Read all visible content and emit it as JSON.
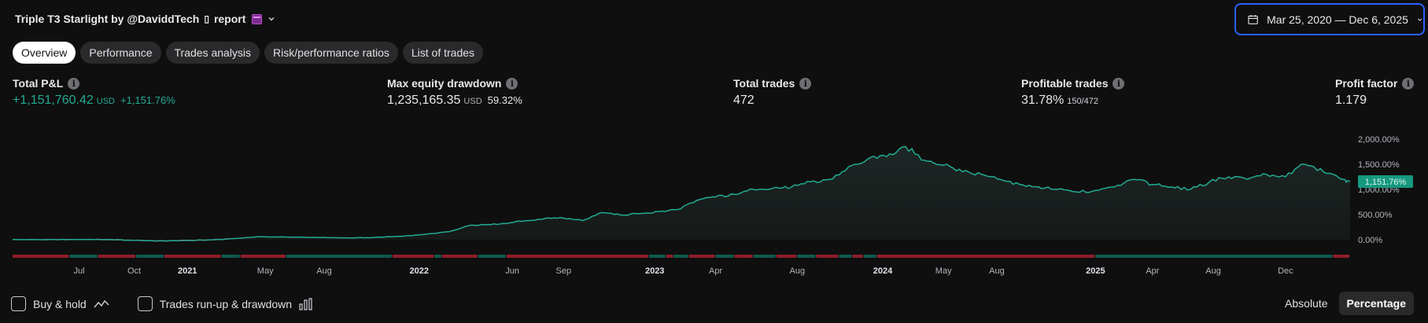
{
  "header": {
    "title": "Triple T3 Starlight by @DaviddTech",
    "glyph": "▯",
    "report_label": "report",
    "date_range": "Mar 25, 2020 — Dec 6, 2025"
  },
  "tabs": [
    {
      "label": "Overview",
      "active": true
    },
    {
      "label": "Performance",
      "active": false
    },
    {
      "label": "Trades analysis",
      "active": false
    },
    {
      "label": "Risk/performance ratios",
      "active": false
    },
    {
      "label": "List of trades",
      "active": false
    }
  ],
  "metrics": {
    "total_pnl": {
      "label": "Total P&L",
      "value": "+1,151,760.42",
      "unit": "USD",
      "pct": "+1,151.76%"
    },
    "max_dd": {
      "label": "Max equity drawdown",
      "value": "1,235,165.35",
      "unit": "USD",
      "pct": "59.32%"
    },
    "total_trades": {
      "label": "Total trades",
      "value": "472"
    },
    "profitable": {
      "label": "Profitable trades",
      "value": "31.78%",
      "ratio": "150/472"
    },
    "profit_factor": {
      "label": "Profit factor",
      "value": "1.179"
    }
  },
  "chart_data": {
    "type": "area",
    "y_ticks": [
      "2,000.00%",
      "1,500.00%",
      "1,000.00%",
      "500.00%",
      "0.00%"
    ],
    "ylim": [
      0,
      2000
    ],
    "last_value_label": "1,151.76%",
    "x_ticks": [
      {
        "label": "Jul",
        "year": false
      },
      {
        "label": "Oct",
        "year": false
      },
      {
        "label": "2021",
        "year": true
      },
      {
        "label": "May",
        "year": false
      },
      {
        "label": "Aug",
        "year": false
      },
      {
        "label": "2022",
        "year": true
      },
      {
        "label": "Jun",
        "year": false
      },
      {
        "label": "Sep",
        "year": false
      },
      {
        "label": "2023",
        "year": true
      },
      {
        "label": "Apr",
        "year": false
      },
      {
        "label": "Aug",
        "year": false
      },
      {
        "label": "2024",
        "year": true
      },
      {
        "label": "May",
        "year": false
      },
      {
        "label": "Aug",
        "year": false
      },
      {
        "label": "2025",
        "year": true
      },
      {
        "label": "Apr",
        "year": false
      },
      {
        "label": "Aug",
        "year": false
      },
      {
        "label": "Dec",
        "year": false
      }
    ],
    "x_months": [
      3.5,
      6.4,
      9.2,
      13.3,
      16.4,
      21.4,
      26.3,
      29.0,
      33.8,
      37.0,
      41.3,
      45.8,
      49.0,
      51.8,
      57.0,
      60.0,
      63.2,
      67.0
    ],
    "equity_t_months": [
      0,
      2,
      3,
      4,
      5,
      5.5,
      6,
      7,
      8,
      9,
      10,
      11,
      12,
      13,
      14,
      15,
      16,
      17,
      18,
      19,
      20,
      21,
      22,
      23,
      24,
      25,
      26,
      27,
      28,
      29,
      30,
      31,
      32,
      33,
      34,
      35,
      36,
      37,
      38,
      39,
      40,
      41,
      42,
      43,
      44,
      45,
      46,
      47,
      48,
      49,
      50,
      51,
      52,
      53,
      54,
      55,
      56,
      57,
      58,
      59,
      60,
      61,
      62,
      63,
      64,
      65,
      66,
      67,
      68,
      69,
      70,
      70.4
    ],
    "equity_values": [
      5,
      4,
      3,
      6,
      2,
      0,
      -10,
      -18,
      -25,
      -15,
      -8,
      5,
      30,
      60,
      55,
      50,
      45,
      40,
      35,
      45,
      60,
      80,
      120,
      160,
      280,
      300,
      320,
      380,
      420,
      430,
      380,
      540,
      490,
      520,
      560,
      600,
      780,
      850,
      900,
      1000,
      1020,
      1050,
      1150,
      1200,
      1450,
      1600,
      1650,
      1850,
      1580,
      1480,
      1350,
      1300,
      1200,
      1100,
      1050,
      1000,
      950,
      980,
      1050,
      1200,
      1100,
      1050,
      1000,
      1150,
      1250,
      1200,
      1300,
      1250,
      1500,
      1350,
      1200,
      1151.76
    ],
    "runup_drawdown_bar": {
      "green_segments_months": [
        [
          3,
          4.5
        ],
        [
          6.5,
          8
        ],
        [
          11,
          12
        ],
        [
          14.4,
          20
        ],
        [
          22.2,
          22.6
        ],
        [
          24.5,
          26
        ],
        [
          33.5,
          34.4
        ],
        [
          34.8,
          35.6
        ],
        [
          37.0,
          38
        ],
        [
          39,
          40.2
        ],
        [
          41.3,
          42.3
        ],
        [
          43.5,
          44.2
        ],
        [
          44.8,
          45.5
        ],
        [
          57,
          69.5
        ]
      ],
      "red_segments_months": [
        [
          0,
          3
        ],
        [
          4.5,
          6.5
        ],
        [
          8,
          11
        ],
        [
          12,
          14.4
        ],
        [
          20,
          22.2
        ],
        [
          22.6,
          24.5
        ],
        [
          26,
          33.5
        ],
        [
          34.4,
          34.8
        ],
        [
          35.6,
          37.0
        ],
        [
          38,
          39
        ],
        [
          40.2,
          41.3
        ],
        [
          42.3,
          43.5
        ],
        [
          44.2,
          44.8
        ],
        [
          45.5,
          57
        ],
        [
          69.5,
          70.4
        ]
      ]
    }
  },
  "footer": {
    "buy_hold_label": "Buy & hold",
    "runup_label": "Trades run-up & drawdown",
    "mode_absolute": "Absolute",
    "mode_percentage": "Percentage"
  },
  "colors": {
    "accent_green": "#22ab94",
    "accent_red": "#f23645",
    "focus_blue": "#2962ff"
  }
}
